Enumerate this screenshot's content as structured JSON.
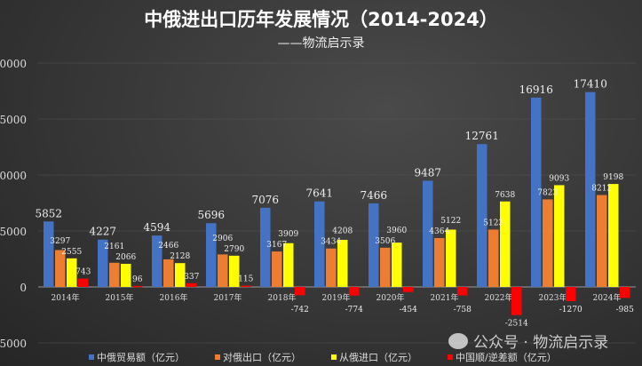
{
  "chart_data": {
    "type": "bar",
    "title": "中俄进出口历年发展情况（2014-2024）",
    "subtitle": "——物流启示录",
    "categories": [
      "2014年",
      "2015年",
      "2016年",
      "2017年",
      "2018年",
      "2019年",
      "2020年",
      "2021年",
      "2022年",
      "2023年",
      "2024年"
    ],
    "series": [
      {
        "name": "中俄贸易额（亿元）",
        "color": "#4472c4",
        "values": [
          5852,
          4227,
          4594,
          5696,
          7076,
          7641,
          7466,
          9487,
          12761,
          16916,
          17410
        ]
      },
      {
        "name": "对俄出口（亿元）",
        "color": "#ed7d31",
        "values": [
          3297,
          2161,
          2466,
          2906,
          3167,
          3434,
          3506,
          4364,
          5123,
          7823,
          8212
        ]
      },
      {
        "name": "从俄进口（亿元）",
        "color": "#ffff00",
        "values": [
          2555,
          2066,
          2128,
          2790,
          3909,
          4208,
          3960,
          5122,
          7638,
          9093,
          9198
        ]
      },
      {
        "name": "中国顺/逆差额（亿元）",
        "color": "#ff0000",
        "values": [
          743,
          96,
          337,
          115,
          -742,
          -774,
          -454,
          -758,
          -2514,
          -1270,
          -985
        ]
      }
    ],
    "yticks": [
      -5000,
      0,
      5000,
      10000,
      15000,
      20000
    ],
    "ylim": [
      -5000,
      20000
    ],
    "legend": "bottom",
    "grid": true
  },
  "watermark": "公众号 · 物流启示录"
}
